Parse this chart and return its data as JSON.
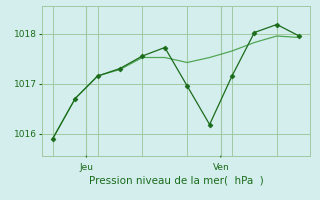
{
  "line1_x": [
    0,
    1,
    2,
    3,
    4,
    5,
    6,
    7,
    8,
    9,
    10,
    11
  ],
  "line1_y": [
    1015.9,
    1016.7,
    1017.15,
    1017.3,
    1017.55,
    1017.72,
    1016.95,
    1016.18,
    1017.15,
    1018.02,
    1018.18,
    1017.95
  ],
  "line2_x": [
    0,
    1,
    2,
    3,
    4,
    5,
    6,
    7,
    8,
    9,
    10,
    11
  ],
  "line2_y": [
    1015.9,
    1016.7,
    1017.15,
    1017.28,
    1017.52,
    1017.52,
    1017.42,
    1017.52,
    1017.65,
    1017.82,
    1017.95,
    1017.92
  ],
  "jeu_x": 1.5,
  "ven_x": 7.5,
  "ylim": [
    1015.55,
    1018.55
  ],
  "yticks": [
    1016,
    1017,
    1018
  ],
  "xticks_major": [
    0,
    2,
    4,
    6,
    8,
    10
  ],
  "bg_color": "#d4eeee",
  "line1_color": "#1a6b1a",
  "line2_color": "#3a9a3a",
  "grid_color": "#a0c8a0",
  "xlabel": "Pression niveau de la mer(  hPa  )",
  "xlabel_color": "#1a6b1a",
  "tick_color": "#1a6b1a",
  "marker": "D",
  "marker_size": 2.5
}
